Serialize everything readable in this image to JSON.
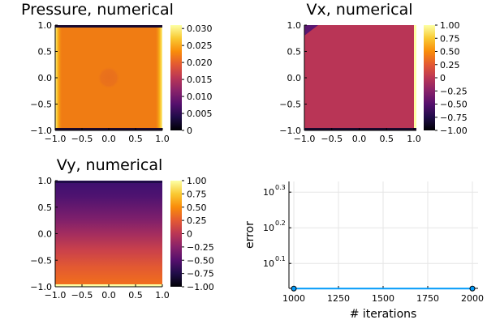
{
  "chart_data": [
    {
      "type": "heatmap",
      "title": "Pressure, numerical",
      "xlim": [
        -1.0,
        1.0
      ],
      "ylim": [
        -1.0,
        1.0
      ],
      "xticks": [
        "−1.0",
        "−0.5",
        "0.0",
        "0.5",
        "1.0"
      ],
      "yticks": [
        "−1.0",
        "−0.5",
        "0.0",
        "0.5",
        "1.0"
      ],
      "colorbar_range": [
        0,
        0.031
      ],
      "colorbar_ticks": [
        "0",
        "0.005",
        "0.010",
        "0.015",
        "0.020",
        "0.025",
        "0.030"
      ],
      "colormap": "inferno",
      "typical_value": 0.024
    },
    {
      "type": "heatmap",
      "title": "Vx, numerical",
      "xlim": [
        -1.0,
        1.0
      ],
      "ylim": [
        -1.0,
        1.0
      ],
      "xticks": [
        "−1.0",
        "−0.5",
        "0.0",
        "0.5",
        "1.0"
      ],
      "yticks": [
        "−1.0",
        "−0.5",
        "0.0",
        "0.5",
        "1.0"
      ],
      "colorbar_range": [
        -1.0,
        1.0
      ],
      "colorbar_ticks": [
        "−1.00",
        "−0.75",
        "−0.50",
        "−0.25",
        "0",
        "0.25",
        "0.50",
        "0.75",
        "1.00"
      ],
      "colormap": "inferno",
      "typical_value": 0.0
    },
    {
      "type": "heatmap",
      "title": "Vy, numerical",
      "xlim": [
        -1.0,
        1.0
      ],
      "ylim": [
        -1.0,
        1.0
      ],
      "xticks": [
        "−1.0",
        "−0.5",
        "0.0",
        "0.5",
        "1.0"
      ],
      "yticks": [
        "−1.0",
        "−0.5",
        "0.0",
        "0.5",
        "1.0"
      ],
      "colorbar_range": [
        -1.0,
        1.0
      ],
      "colorbar_ticks": [
        "−1.00",
        "−0.75",
        "−0.50",
        "−0.25",
        "0",
        "0.25",
        "0.50",
        "0.75",
        "1.00"
      ],
      "colormap": "inferno",
      "value_range_top_to_bottom": [
        -0.75,
        0.55
      ]
    },
    {
      "type": "line",
      "title": "",
      "xlabel": "# iterations",
      "ylabel": "error",
      "xlim": [
        1000,
        2000
      ],
      "yscale": "log10",
      "xticks": [
        "1000",
        "1250",
        "1500",
        "1750",
        "2000"
      ],
      "yticks": [
        "10",
        "10",
        "10"
      ],
      "ytick_exponents": [
        "0.1",
        "0.2",
        "0.3"
      ],
      "grid": true,
      "series": [
        {
          "x": [
            1000,
            2000
          ],
          "y": [
            1.07,
            1.07
          ],
          "color": "#009AFA"
        }
      ]
    }
  ]
}
